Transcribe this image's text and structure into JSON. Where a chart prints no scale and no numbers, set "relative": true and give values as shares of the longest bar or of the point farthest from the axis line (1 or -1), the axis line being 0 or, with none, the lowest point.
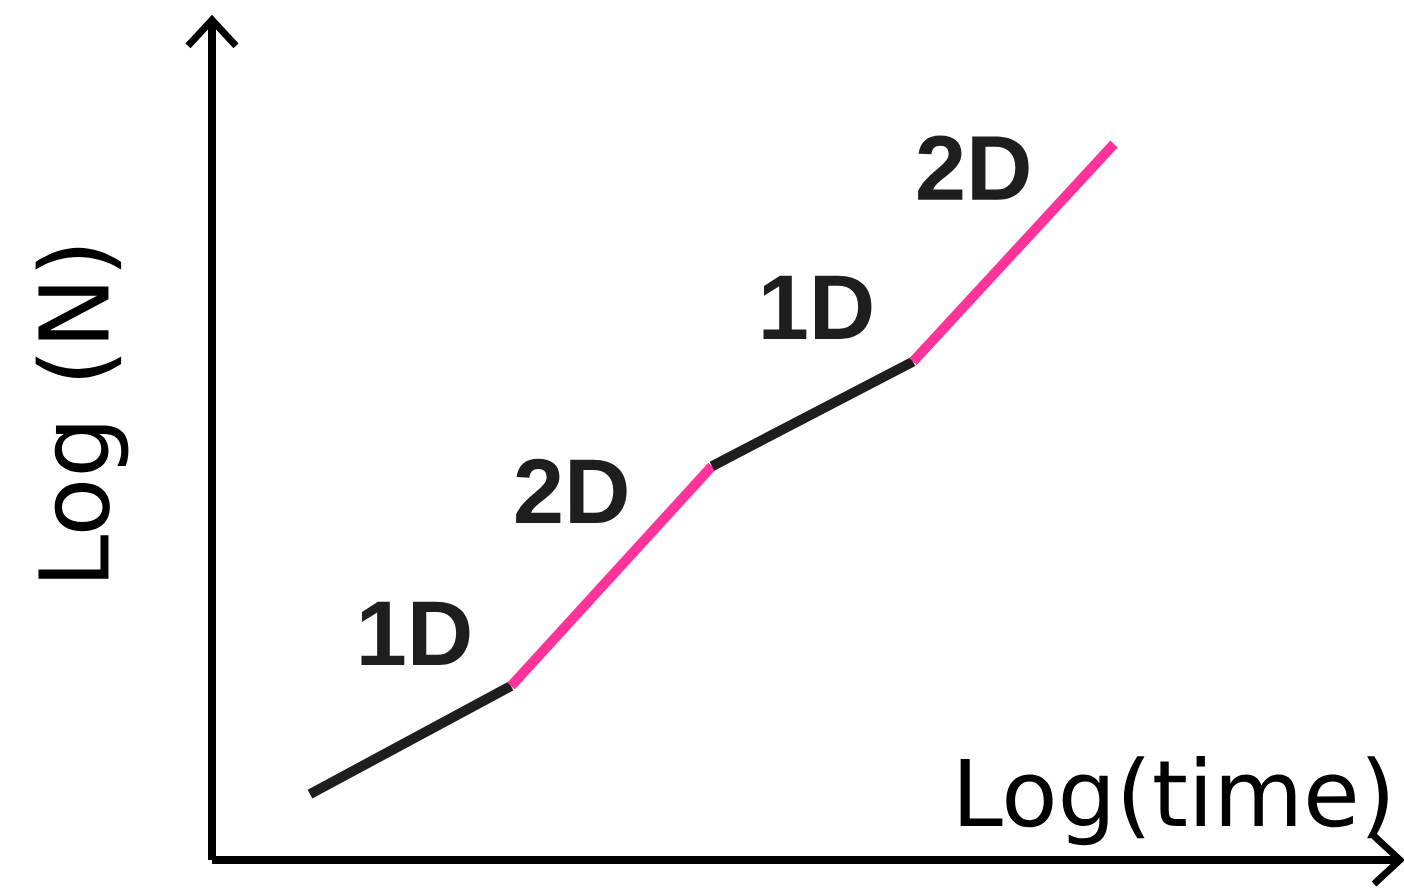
{
  "chart_data": {
    "type": "line",
    "relative": true,
    "xlabel": "Log(time)",
    "ylabel": "Log (N)",
    "categories": [
      null,
      null,
      null,
      null,
      null
    ],
    "series": [
      {
        "name": "1D",
        "color": "#1e1e1e",
        "values": [
          0.092,
          0.243,
          null,
          null,
          null
        ]
      },
      {
        "name": "2D",
        "color": "#ff3399",
        "values": [
          null,
          0.243,
          0.55,
          null,
          null
        ]
      },
      {
        "name": "1D",
        "color": "#1e1e1e",
        "values": [
          null,
          null,
          0.55,
          0.696,
          null
        ]
      },
      {
        "name": "2D",
        "color": "#ff3399",
        "values": [
          null,
          null,
          null,
          0.696,
          1.0
        ]
      }
    ]
  }
}
